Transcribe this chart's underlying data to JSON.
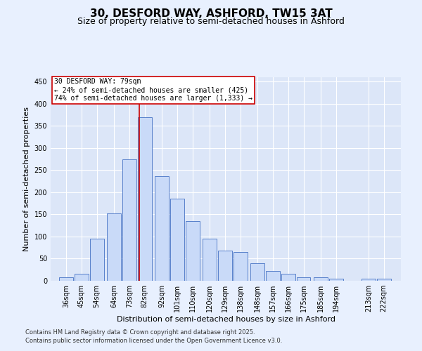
{
  "title_line1": "30, DESFORD WAY, ASHFORD, TW15 3AT",
  "title_line2": "Size of property relative to semi-detached houses in Ashford",
  "xlabel": "Distribution of semi-detached houses by size in Ashford",
  "ylabel": "Number of semi-detached properties",
  "footnote1": "Contains HM Land Registry data © Crown copyright and database right 2025.",
  "footnote2": "Contains public sector information licensed under the Open Government Licence v3.0.",
  "annotation_line1": "30 DESFORD WAY: 79sqm",
  "annotation_line2": "← 24% of semi-detached houses are smaller (425)",
  "annotation_line3": "74% of semi-detached houses are larger (1,333) →",
  "bar_labels": [
    "36sqm",
    "45sqm",
    "54sqm",
    "64sqm",
    "73sqm",
    "82sqm",
    "92sqm",
    "101sqm",
    "110sqm",
    "120sqm",
    "129sqm",
    "138sqm",
    "148sqm",
    "157sqm",
    "166sqm",
    "175sqm",
    "185sqm",
    "194sqm",
    "213sqm",
    "222sqm"
  ],
  "bar_centers": [
    36,
    45,
    54,
    64,
    73,
    82,
    92,
    101,
    110,
    120,
    129,
    138,
    148,
    157,
    166,
    175,
    185,
    194,
    213,
    222
  ],
  "bar_heights": [
    8,
    16,
    95,
    152,
    275,
    370,
    237,
    185,
    135,
    95,
    68,
    65,
    40,
    22,
    16,
    8,
    8,
    5,
    5,
    5
  ],
  "bar_color": "#c9daf8",
  "bar_edge_color": "#4472c4",
  "vline_color": "#cc0000",
  "vline_x": 79,
  "box_color": "#cc0000",
  "ylim": [
    0,
    460
  ],
  "yticks": [
    0,
    50,
    100,
    150,
    200,
    250,
    300,
    350,
    400,
    450
  ],
  "bg_color": "#e8f0fe",
  "plot_bg_color": "#dce6f8",
  "grid_color": "#ffffff",
  "title_fontsize": 11,
  "subtitle_fontsize": 9,
  "axis_label_fontsize": 8,
  "ylabel_fontsize": 8,
  "tick_fontsize": 7,
  "annotation_fontsize": 7,
  "footnote_fontsize": 6
}
